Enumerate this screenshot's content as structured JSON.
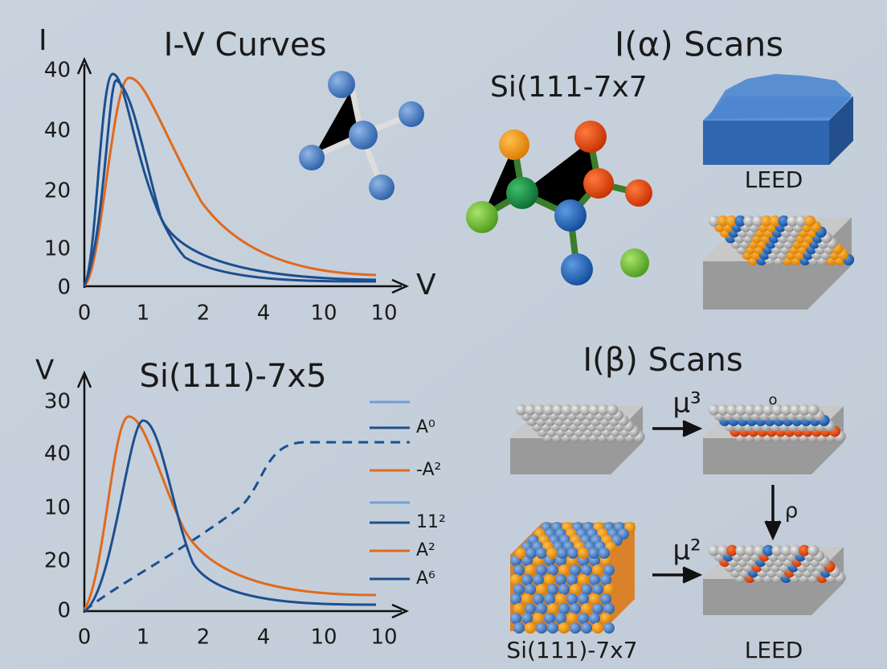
{
  "top_left": {
    "title": "I-V Curves",
    "y_axis_label": "I",
    "x_axis_label": "V",
    "y_tick_labels": [
      "40",
      "40",
      "20",
      "10",
      "0"
    ],
    "x_tick_labels": [
      "0",
      "1",
      "2",
      "4",
      "10",
      "10"
    ]
  },
  "bottom_left": {
    "title": "Si(111)-7x5",
    "y_axis_label": "V",
    "y_tick_labels": [
      "30",
      "40",
      "10",
      "20",
      "0"
    ],
    "x_tick_labels": [
      "0",
      "1",
      "2",
      "4",
      "10",
      "10"
    ],
    "legend": [
      "A⁰",
      "-A²",
      "11²",
      "A²",
      "A⁶"
    ]
  },
  "top_right": {
    "title": "I(α) Scans",
    "subtitle": "Si(111-7x7",
    "image_label": "LEED"
  },
  "bottom_right": {
    "title": "I(β) Scans",
    "small_label": "o",
    "arrow_labels": [
      "μ³",
      "ρ",
      "μ²"
    ],
    "image_labels": [
      "Si(111)-7x7",
      "LEED"
    ]
  }
}
